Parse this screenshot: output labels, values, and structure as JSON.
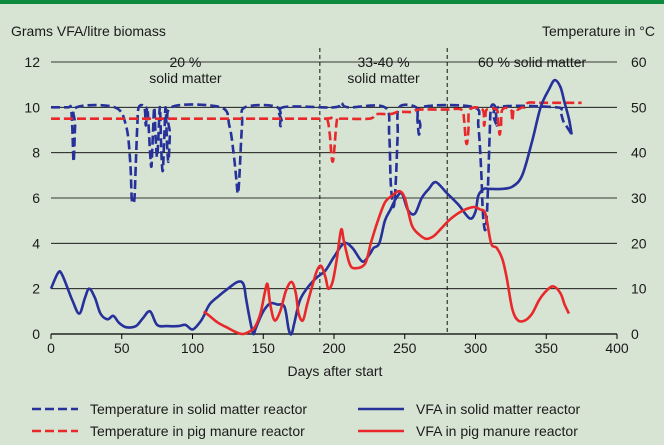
{
  "chart_data": {
    "type": "line",
    "y_left_label": "Grams VFA/litre biomass",
    "y_right_label": "Temperature in °C",
    "xlabel": "Days after start",
    "xlim": [
      0,
      400
    ],
    "ylim_left": [
      0,
      12
    ],
    "ylim_right": [
      0,
      60
    ],
    "x_ticks": [
      "0",
      "50",
      "100",
      "150",
      "200",
      "250",
      "300",
      "350",
      "400"
    ],
    "y_left_ticks": [
      "0",
      "2",
      "4",
      "6",
      "8",
      "10",
      "12"
    ],
    "y_right_ticks": [
      "0",
      "10",
      "20",
      "30",
      "40",
      "50",
      "60"
    ],
    "grid": "horizontal",
    "legend_position": "bottom",
    "regions": [
      {
        "label_lines": [
          "20 %",
          "solid matter"
        ],
        "x_center": 95
      },
      {
        "label_lines": [
          "33-40 %",
          "solid matter"
        ],
        "x_center": 235
      },
      {
        "label_lines": [
          "60 % solid matter"
        ],
        "x_center": 340
      }
    ],
    "region_boundaries": [
      190,
      280
    ],
    "colors": {
      "blue": "#26319a",
      "red": "#e8282a",
      "grid": "#000000",
      "frame_top": "#0e8a3e"
    },
    "series": [
      {
        "name": "Temperature in solid matter reactor",
        "axis": "right",
        "style": "dashed",
        "color": "#26319a",
        "points": [
          [
            0,
            50
          ],
          [
            12,
            50
          ],
          [
            14,
            50
          ],
          [
            15,
            46
          ],
          [
            16,
            38
          ],
          [
            17,
            46
          ],
          [
            18,
            50
          ],
          [
            45,
            50
          ],
          [
            53,
            46
          ],
          [
            56,
            38
          ],
          [
            57,
            30
          ],
          [
            58,
            29
          ],
          [
            59,
            30
          ],
          [
            60,
            38
          ],
          [
            61,
            46
          ],
          [
            62,
            50
          ],
          [
            66,
            50
          ],
          [
            67,
            46
          ],
          [
            68,
            50
          ],
          [
            69,
            46
          ],
          [
            70,
            40
          ],
          [
            71,
            37
          ],
          [
            72,
            44
          ],
          [
            73,
            50
          ],
          [
            74,
            43
          ],
          [
            75,
            39
          ],
          [
            76,
            44
          ],
          [
            77,
            50
          ],
          [
            78,
            40
          ],
          [
            79,
            36
          ],
          [
            80,
            43
          ],
          [
            81,
            50
          ],
          [
            82,
            42
          ],
          [
            83,
            38
          ],
          [
            84,
            44
          ],
          [
            85,
            50
          ],
          [
            120,
            50
          ],
          [
            126,
            46
          ],
          [
            129,
            40
          ],
          [
            131,
            34
          ],
          [
            132,
            31
          ],
          [
            133,
            34
          ],
          [
            135,
            46
          ],
          [
            137,
            50
          ],
          [
            160,
            50
          ],
          [
            162,
            46
          ],
          [
            163,
            47
          ],
          [
            164,
            50
          ],
          [
            200,
            50
          ],
          [
            205,
            51
          ],
          [
            210,
            50
          ],
          [
            236,
            50
          ],
          [
            239,
            44
          ],
          [
            240,
            34
          ],
          [
            241,
            30
          ],
          [
            242,
            28
          ],
          [
            243,
            30
          ],
          [
            244,
            36
          ],
          [
            245,
            44
          ],
          [
            246,
            50
          ],
          [
            258,
            50
          ],
          [
            259,
            47
          ],
          [
            260,
            44
          ],
          [
            261,
            46
          ],
          [
            262,
            50
          ],
          [
            299,
            50
          ],
          [
            302,
            46
          ],
          [
            304,
            36
          ],
          [
            305,
            28
          ],
          [
            306,
            24
          ],
          [
            307,
            23
          ],
          [
            308,
            26
          ],
          [
            309,
            34
          ],
          [
            310,
            44
          ],
          [
            311,
            50
          ],
          [
            314,
            50
          ],
          [
            315,
            46
          ],
          [
            316,
            50
          ],
          [
            357,
            50
          ],
          [
            360,
            49
          ],
          [
            362,
            47
          ],
          [
            364,
            46
          ],
          [
            366,
            45
          ],
          [
            368,
            44
          ]
        ]
      },
      {
        "name": "Temperature in pig manure reactor",
        "axis": "right",
        "style": "dashed",
        "color": "#e8282a",
        "points": [
          [
            0,
            47.5
          ],
          [
            100,
            47.5
          ],
          [
            190,
            47.5
          ],
          [
            195,
            47.5
          ],
          [
            197,
            44
          ],
          [
            198,
            40
          ],
          [
            199,
            38
          ],
          [
            200,
            40
          ],
          [
            202,
            47
          ],
          [
            204,
            47.5
          ],
          [
            225,
            47.5
          ],
          [
            230,
            48.5
          ],
          [
            240,
            48.5
          ],
          [
            245,
            49
          ],
          [
            250,
            49
          ],
          [
            255,
            49
          ],
          [
            260,
            49.5
          ],
          [
            275,
            49.5
          ],
          [
            280,
            49.5
          ],
          [
            290,
            49.5
          ],
          [
            292,
            47
          ],
          [
            293,
            43
          ],
          [
            294,
            42
          ],
          [
            295,
            45
          ],
          [
            296,
            49.5
          ],
          [
            305,
            49.5
          ],
          [
            306,
            46
          ],
          [
            307,
            48
          ],
          [
            308,
            49.5
          ],
          [
            315,
            49.5
          ],
          [
            316,
            47
          ],
          [
            317,
            44
          ],
          [
            318,
            46
          ],
          [
            319,
            49.5
          ],
          [
            325,
            49.5
          ],
          [
            326,
            47
          ],
          [
            327,
            49.5
          ],
          [
            330,
            49.5
          ],
          [
            333,
            50
          ],
          [
            335,
            50
          ],
          [
            337,
            51
          ],
          [
            345,
            51
          ],
          [
            360,
            51
          ],
          [
            375,
            51
          ]
        ]
      },
      {
        "name": "VFA in solid matter reactor",
        "axis": "left",
        "style": "solid",
        "color": "#26319a",
        "points": [
          [
            0,
            2.0
          ],
          [
            5,
            2.7
          ],
          [
            8,
            2.6
          ],
          [
            15,
            1.5
          ],
          [
            20,
            0.9
          ],
          [
            24,
            1.6
          ],
          [
            27,
            2.0
          ],
          [
            31,
            1.6
          ],
          [
            35,
            0.9
          ],
          [
            40,
            0.65
          ],
          [
            44,
            0.8
          ],
          [
            48,
            0.5
          ],
          [
            53,
            0.3
          ],
          [
            60,
            0.35
          ],
          [
            65,
            0.7
          ],
          [
            70,
            1.0
          ],
          [
            75,
            0.4
          ],
          [
            82,
            0.35
          ],
          [
            90,
            0.35
          ],
          [
            95,
            0.4
          ],
          [
            100,
            0.2
          ],
          [
            105,
            0.5
          ],
          [
            108,
            0.8
          ],
          [
            112,
            1.3
          ],
          [
            118,
            1.65
          ],
          [
            125,
            2.0
          ],
          [
            132,
            2.3
          ],
          [
            136,
            2.2
          ],
          [
            138,
            1.5
          ],
          [
            141,
            0.5
          ],
          [
            143,
            0.0
          ],
          [
            145,
            0.3
          ],
          [
            150,
            1.0
          ],
          [
            155,
            1.35
          ],
          [
            160,
            1.3
          ],
          [
            165,
            1.2
          ],
          [
            168,
            0.2
          ],
          [
            170,
            0.0
          ],
          [
            172,
            0.5
          ],
          [
            176,
            1.5
          ],
          [
            182,
            2.1
          ],
          [
            188,
            2.5
          ],
          [
            194,
            2.8
          ],
          [
            200,
            3.4
          ],
          [
            207,
            4.0
          ],
          [
            213,
            3.8
          ],
          [
            220,
            3.2
          ],
          [
            225,
            3.5
          ],
          [
            228,
            3.8
          ],
          [
            232,
            4.0
          ],
          [
            236,
            5.0
          ],
          [
            240,
            5.5
          ],
          [
            244,
            6.0
          ],
          [
            248,
            6.2
          ],
          [
            252,
            5.5
          ],
          [
            257,
            5.3
          ],
          [
            262,
            6.0
          ],
          [
            267,
            6.4
          ],
          [
            272,
            6.7
          ],
          [
            280,
            6.2
          ],
          [
            288,
            5.7
          ],
          [
            296,
            5.1
          ],
          [
            300,
            5.4
          ],
          [
            302,
            6.1
          ],
          [
            306,
            6.4
          ],
          [
            310,
            6.4
          ],
          [
            318,
            6.4
          ],
          [
            326,
            6.5
          ],
          [
            333,
            7.0
          ],
          [
            340,
            8.5
          ],
          [
            346,
            10.0
          ],
          [
            352,
            10.8
          ],
          [
            356,
            11.2
          ],
          [
            360,
            10.9
          ],
          [
            363,
            10.2
          ],
          [
            366,
            9.5
          ],
          [
            368,
            8.8
          ]
        ]
      },
      {
        "name": "VFA in pig manure reactor",
        "axis": "left",
        "style": "solid",
        "color": "#e8282a",
        "points": [
          [
            108,
            1.0
          ],
          [
            112,
            0.8
          ],
          [
            118,
            0.5
          ],
          [
            124,
            0.3
          ],
          [
            130,
            0.1
          ],
          [
            135,
            0.0
          ],
          [
            140,
            0.1
          ],
          [
            144,
            0.3
          ],
          [
            148,
            0.9
          ],
          [
            151,
            1.8
          ],
          [
            153,
            2.2
          ],
          [
            155,
            1.3
          ],
          [
            158,
            0.6
          ],
          [
            162,
            1.0
          ],
          [
            166,
            1.9
          ],
          [
            170,
            2.3
          ],
          [
            173,
            1.8
          ],
          [
            175,
            0.9
          ],
          [
            178,
            0.6
          ],
          [
            181,
            1.3
          ],
          [
            185,
            2.2
          ],
          [
            188,
            2.8
          ],
          [
            191,
            3.0
          ],
          [
            194,
            2.5
          ],
          [
            196,
            2.0
          ],
          [
            199,
            2.3
          ],
          [
            202,
            3.3
          ],
          [
            205,
            4.6
          ],
          [
            207,
            4.1
          ],
          [
            211,
            3.1
          ],
          [
            215,
            2.9
          ],
          [
            222,
            3.1
          ],
          [
            226,
            4.0
          ],
          [
            231,
            5.0
          ],
          [
            236,
            5.8
          ],
          [
            241,
            6.1
          ],
          [
            246,
            6.3
          ],
          [
            250,
            6.0
          ],
          [
            255,
            4.8
          ],
          [
            260,
            4.4
          ],
          [
            265,
            4.2
          ],
          [
            270,
            4.3
          ],
          [
            275,
            4.6
          ],
          [
            281,
            5.0
          ],
          [
            287,
            5.3
          ],
          [
            293,
            5.5
          ],
          [
            299,
            5.6
          ],
          [
            303,
            5.5
          ],
          [
            307,
            5.3
          ],
          [
            311,
            4.0
          ],
          [
            315,
            3.8
          ],
          [
            319,
            3.3
          ],
          [
            322,
            2.5
          ],
          [
            326,
            1.1
          ],
          [
            330,
            0.6
          ],
          [
            335,
            0.6
          ],
          [
            340,
            0.9
          ],
          [
            345,
            1.5
          ],
          [
            350,
            1.9
          ],
          [
            355,
            2.1
          ],
          [
            360,
            1.8
          ],
          [
            363,
            1.3
          ],
          [
            366,
            0.9
          ]
        ]
      }
    ]
  }
}
